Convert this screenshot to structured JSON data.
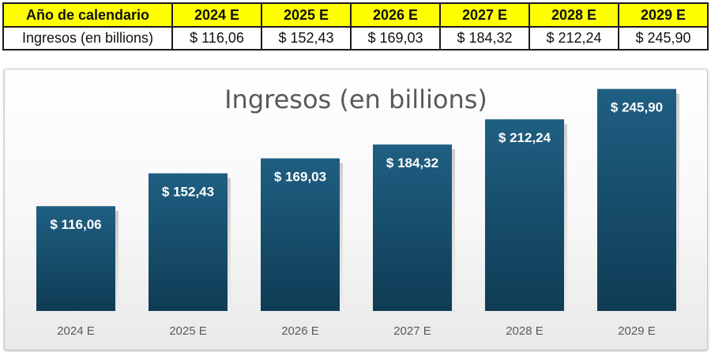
{
  "table": {
    "header": [
      "Año de calendario",
      "2024 E",
      "2025 E",
      "2026 E",
      "2027 E",
      "2028 E",
      "2029 E"
    ],
    "row_label": "Ingresos (en billions)",
    "row_values": [
      "$ 116,06",
      "$ 152,43",
      "$ 169,03",
      "$ 184,32",
      "$ 212,24",
      "$ 245,90"
    ]
  },
  "colors": {
    "header_bg": "#ffff00",
    "bar_top": "#1f5f82",
    "bar_bottom": "#0f3c55",
    "label_text": "#ffffff",
    "title_text": "#595959"
  },
  "chart_data": {
    "type": "bar",
    "title": "Ingresos (en billions)",
    "categories": [
      "2024 E",
      "2025 E",
      "2026 E",
      "2027 E",
      "2028 E",
      "2029 E"
    ],
    "values": [
      116.06,
      152.43,
      169.03,
      184.32,
      212.24,
      245.9
    ],
    "data_labels": [
      "$ 116,06",
      "$ 152,43",
      "$ 169,03",
      "$ 184,32",
      "$ 212,24",
      "$ 245,90"
    ],
    "xlabel": "",
    "ylabel": "",
    "ylim": [
      0,
      250
    ],
    "grid": false,
    "legend": "none"
  }
}
